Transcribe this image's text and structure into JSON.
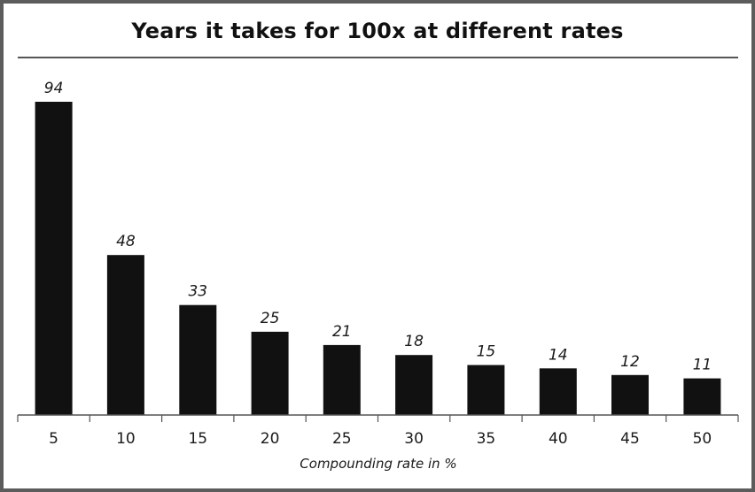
{
  "chart_data": {
    "type": "bar",
    "title": "Years it takes for 100x at different rates",
    "xlabel": "Compounding rate in %",
    "ylabel": "",
    "categories": [
      "5",
      "10",
      "15",
      "20",
      "25",
      "30",
      "35",
      "40",
      "45",
      "50"
    ],
    "values": [
      94,
      48,
      33,
      25,
      21,
      18,
      15,
      14,
      12,
      11
    ],
    "data_labels": [
      "94",
      "48",
      "33",
      "25",
      "21",
      "18",
      "15",
      "14",
      "12",
      "11"
    ],
    "ylim": [
      0,
      94
    ],
    "grid": false,
    "legend": "none",
    "colors": {
      "bar": "#111111",
      "axis": "#555555",
      "title_rule": "#555555",
      "frame": "#5c5c5c"
    }
  }
}
